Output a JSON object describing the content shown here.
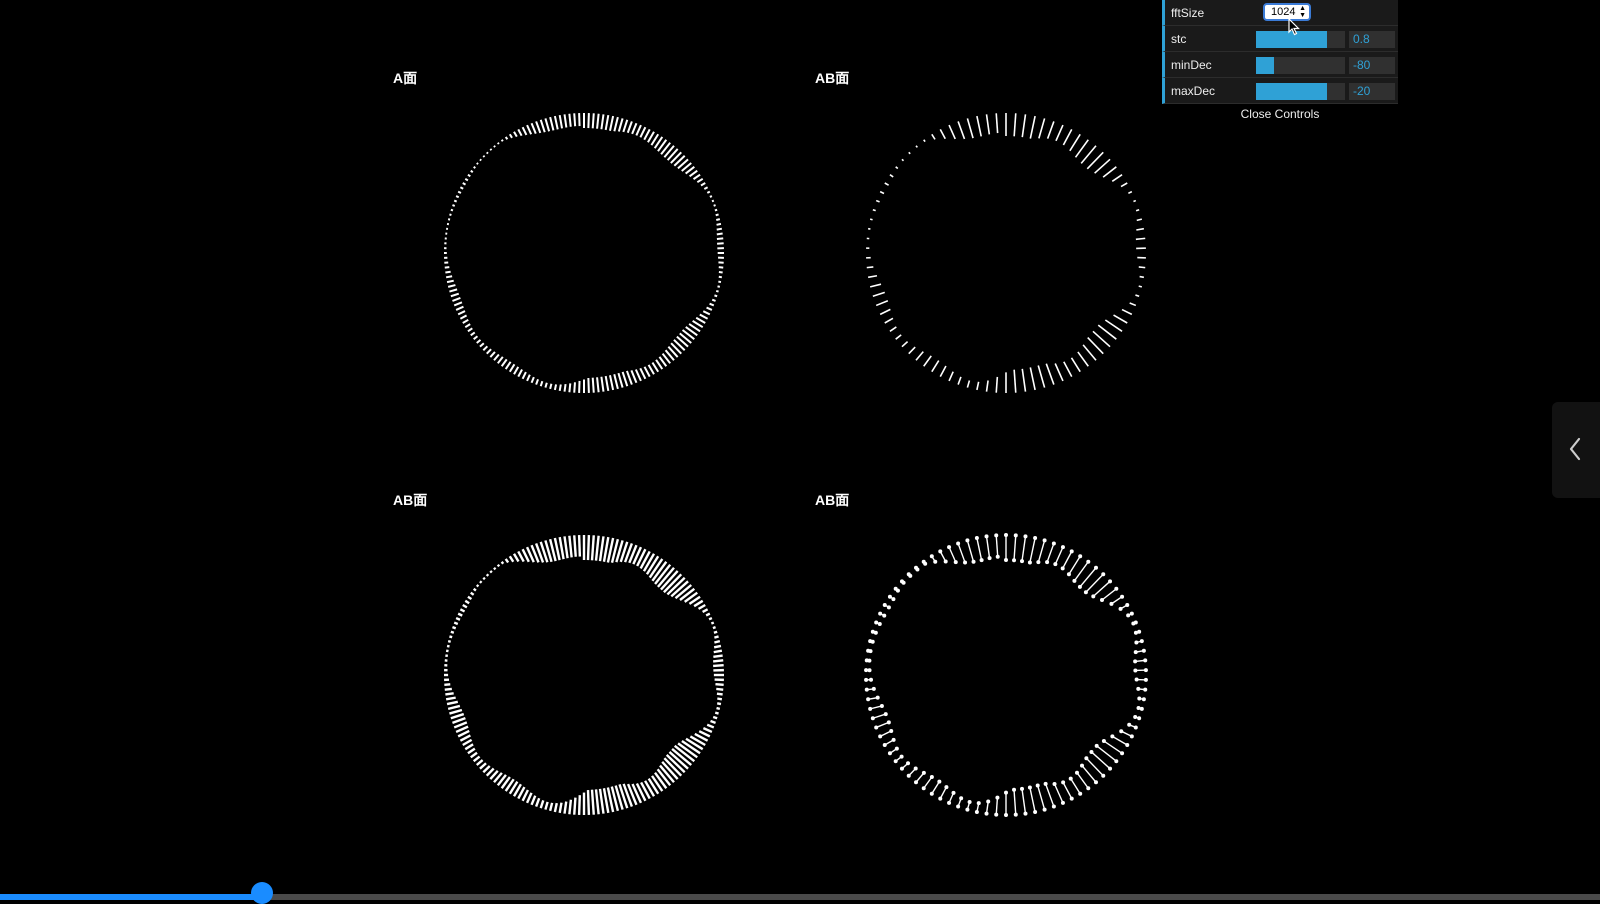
{
  "visualizers": [
    {
      "label": "A面",
      "style": "bars-inner"
    },
    {
      "label": "AB面",
      "style": "bars-spaced"
    },
    {
      "label": "AB面",
      "style": "bars-thick"
    },
    {
      "label": "AB面",
      "style": "bars-dots"
    }
  ],
  "controls": {
    "fftSize": {
      "label": "fftSize",
      "value": "1024"
    },
    "stc": {
      "label": "stc",
      "value": "0.8",
      "fill": 0.8
    },
    "minDec": {
      "label": "minDec",
      "value": "-80",
      "fill": 0.2
    },
    "maxDec": {
      "label": "maxDec",
      "value": "-20",
      "fill": 0.8
    },
    "close_label": "Close Controls"
  },
  "colors": {
    "accent": "#2fa1d6",
    "progress": "#1a8cff"
  },
  "icons": {
    "side_tab": "chevron-left-icon",
    "pointer": "mouse-cursor-icon"
  },
  "progress": 0.164
}
